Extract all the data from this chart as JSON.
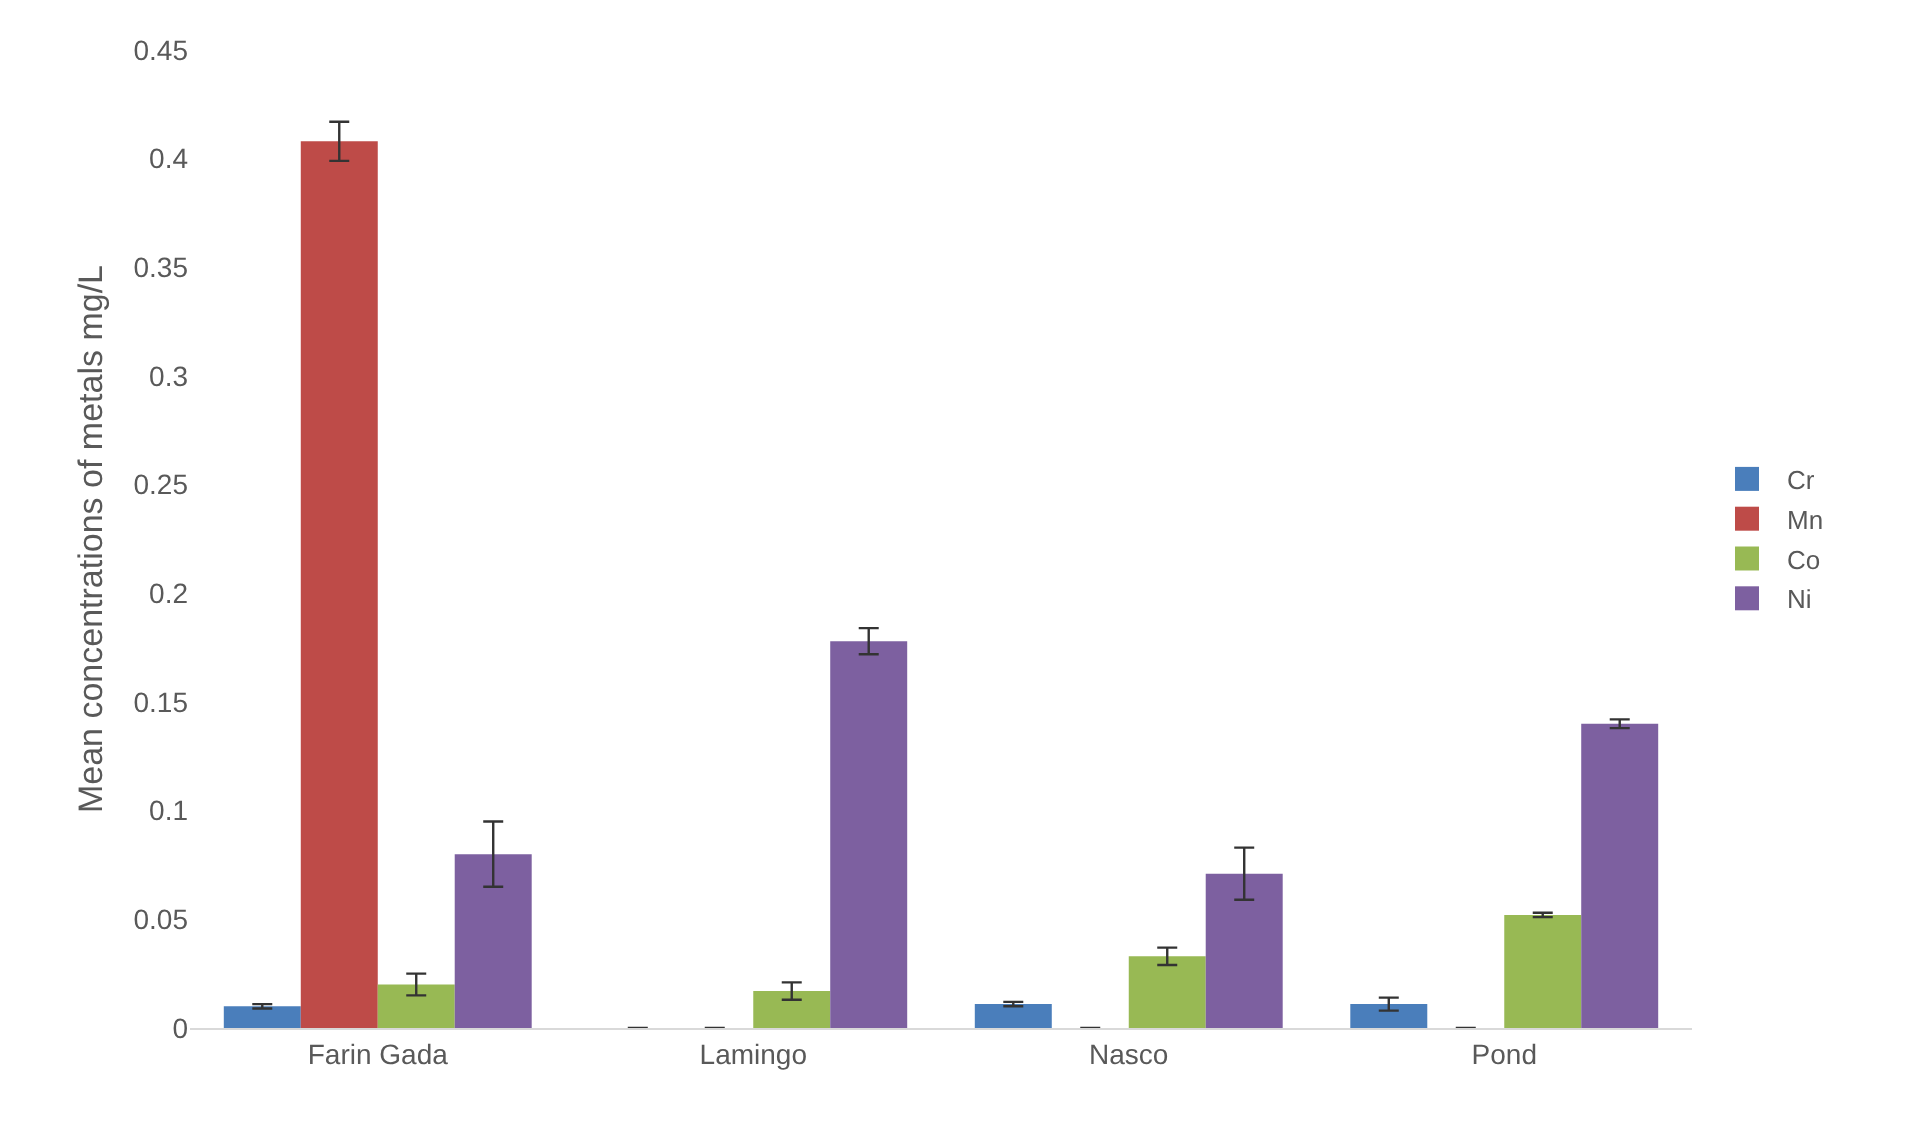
{
  "chart_data": {
    "type": "bar",
    "ylabel": "Mean concentrations of metals mg/L",
    "categories": [
      "Farin Gada",
      "Lamingo",
      "Nasco",
      "Pond"
    ],
    "series": [
      {
        "name": "Cr",
        "color": "#4a7ebb",
        "values": [
          0.01,
          0,
          0.011,
          0.011
        ],
        "errors": [
          0.001,
          0,
          0.001,
          0.003
        ]
      },
      {
        "name": "Mn",
        "color": "#be4b48",
        "values": [
          0.408,
          0,
          0,
          0
        ],
        "errors": [
          0.009,
          0,
          0,
          0
        ]
      },
      {
        "name": "Co",
        "color": "#98b954",
        "values": [
          0.02,
          0.017,
          0.033,
          0.052
        ],
        "errors": [
          0.005,
          0.004,
          0.004,
          0.001
        ]
      },
      {
        "name": "Ni",
        "color": "#7d60a0",
        "values": [
          0.08,
          0.178,
          0.071,
          0.14
        ],
        "errors": [
          0.015,
          0.006,
          0.012,
          0.002
        ]
      }
    ],
    "ylim": [
      0,
      0.45
    ],
    "yticks": [
      {
        "value": 0,
        "label": "0"
      },
      0.05,
      0.1,
      0.15,
      0.2,
      0.25,
      0.3,
      0.35,
      0.4,
      0.45
    ],
    "grid": false,
    "legend": "right"
  }
}
